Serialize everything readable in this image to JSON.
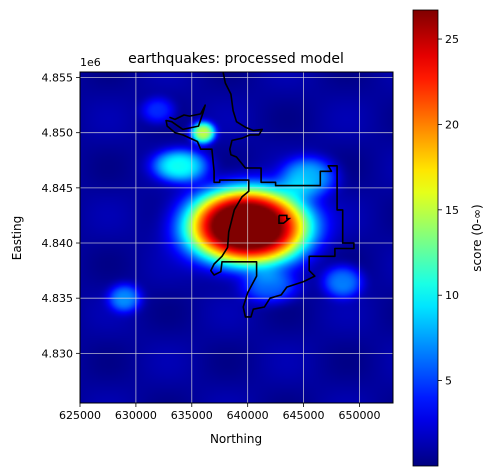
{
  "chart_data": {
    "type": "heatmap",
    "title": "earthquakes: processed model",
    "xlabel": "Northing",
    "ylabel": "Easting",
    "y_offset_label": "1e6",
    "xlim": [
      625000,
      653000
    ],
    "ylim": [
      4825500,
      4855500
    ],
    "xticks": [
      625000,
      630000,
      635000,
      640000,
      645000,
      650000
    ],
    "yticks": [
      4830000,
      4835000,
      4840000,
      4845000,
      4850000,
      4855000
    ],
    "xtick_labels": [
      "625000",
      "630000",
      "635000",
      "640000",
      "645000",
      "650000"
    ],
    "ytick_labels": [
      "4.830",
      "4.835",
      "4.840",
      "4.845",
      "4.850",
      "4.855"
    ],
    "grid": true,
    "colormap": "jet",
    "colorbar": {
      "label": "score (0-∞)",
      "range": [
        0,
        26.7
      ],
      "ticks": [
        5,
        10,
        15,
        20,
        25
      ],
      "tick_labels": [
        "5",
        "10",
        "15",
        "20",
        "25"
      ]
    },
    "hotspots": [
      {
        "x": 640000,
        "y": 4841500,
        "peak": 30,
        "sx": 5500,
        "sy": 3500
      },
      {
        "x": 636000,
        "y": 4850000,
        "peak": 14,
        "sx": 1100,
        "sy": 1000
      },
      {
        "x": 634000,
        "y": 4847000,
        "peak": 9,
        "sx": 2500,
        "sy": 1500
      },
      {
        "x": 645500,
        "y": 4846000,
        "peak": 7,
        "sx": 2500,
        "sy": 1800
      },
      {
        "x": 629000,
        "y": 4835000,
        "peak": 6,
        "sx": 1500,
        "sy": 1300
      },
      {
        "x": 648500,
        "y": 4836500,
        "peak": 6,
        "sx": 1800,
        "sy": 1500
      },
      {
        "x": 642000,
        "y": 4836000,
        "peak": 5,
        "sx": 2500,
        "sy": 1500
      },
      {
        "x": 632000,
        "y": 4852000,
        "peak": 4,
        "sx": 1500,
        "sy": 1200
      }
    ],
    "boundary": [
      [
        637800,
        4855500
      ],
      [
        638000,
        4854500
      ],
      [
        638500,
        4853500
      ],
      [
        638700,
        4852000
      ],
      [
        639000,
        4851000
      ],
      [
        639800,
        4850500
      ],
      [
        640500,
        4850200
      ],
      [
        641300,
        4850300
      ],
      [
        641000,
        4849800
      ],
      [
        640200,
        4849800
      ],
      [
        639500,
        4849500
      ],
      [
        638600,
        4849300
      ],
      [
        638400,
        4848500
      ],
      [
        638500,
        4848000
      ],
      [
        639000,
        4847800
      ],
      [
        639800,
        4846800
      ],
      [
        641200,
        4846800
      ],
      [
        641200,
        4845500
      ],
      [
        642500,
        4845500
      ],
      [
        642500,
        4845200
      ],
      [
        645000,
        4845200
      ],
      [
        646500,
        4845200
      ],
      [
        646500,
        4846500
      ],
      [
        647500,
        4846500
      ],
      [
        647200,
        4847000
      ],
      [
        648000,
        4847000
      ],
      [
        648000,
        4843000
      ],
      [
        648500,
        4843000
      ],
      [
        648500,
        4840000
      ],
      [
        649500,
        4840000
      ],
      [
        649500,
        4839500
      ],
      [
        647800,
        4839500
      ],
      [
        647800,
        4838800
      ],
      [
        645500,
        4838800
      ],
      [
        645500,
        4837500
      ],
      [
        646000,
        4837000
      ],
      [
        645000,
        4836500
      ],
      [
        643500,
        4836000
      ],
      [
        643000,
        4835300
      ],
      [
        642000,
        4835000
      ],
      [
        641500,
        4834200
      ],
      [
        640500,
        4834000
      ],
      [
        640300,
        4833300
      ],
      [
        639800,
        4833300
      ],
      [
        639600,
        4834200
      ],
      [
        640000,
        4835500
      ],
      [
        640800,
        4837000
      ],
      [
        640800,
        4838300
      ],
      [
        637700,
        4838300
      ],
      [
        637600,
        4837400
      ],
      [
        637000,
        4837100
      ],
      [
        636700,
        4837500
      ],
      [
        637000,
        4838100
      ],
      [
        637700,
        4838800
      ],
      [
        638200,
        4839600
      ],
      [
        638300,
        4841000
      ],
      [
        638800,
        4843000
      ],
      [
        639500,
        4844200
      ],
      [
        640100,
        4844700
      ],
      [
        640100,
        4845700
      ],
      [
        637500,
        4845700
      ],
      [
        637500,
        4845500
      ],
      [
        637000,
        4845500
      ],
      [
        637000,
        4846500
      ],
      [
        636800,
        4848500
      ],
      [
        635800,
        4848500
      ],
      [
        635500,
        4849200
      ],
      [
        634200,
        4849800
      ],
      [
        633500,
        4850000
      ],
      [
        632800,
        4850600
      ],
      [
        632700,
        4851100
      ],
      [
        633200,
        4851000
      ],
      [
        634200,
        4850300
      ],
      [
        635600,
        4850600
      ],
      [
        636000,
        4851800
      ],
      [
        636200,
        4852500
      ],
      [
        635800,
        4851700
      ],
      [
        634800,
        4851500
      ],
      [
        634300,
        4851600
      ],
      [
        633500,
        4851200
      ],
      [
        633000,
        4851400
      ]
    ],
    "boundary_islet": [
      [
        642800,
        4842500
      ],
      [
        643500,
        4842500
      ],
      [
        643500,
        4842200
      ],
      [
        643700,
        4842200
      ],
      [
        643200,
        4841800
      ],
      [
        642800,
        4841800
      ],
      [
        642800,
        4842500
      ]
    ]
  }
}
